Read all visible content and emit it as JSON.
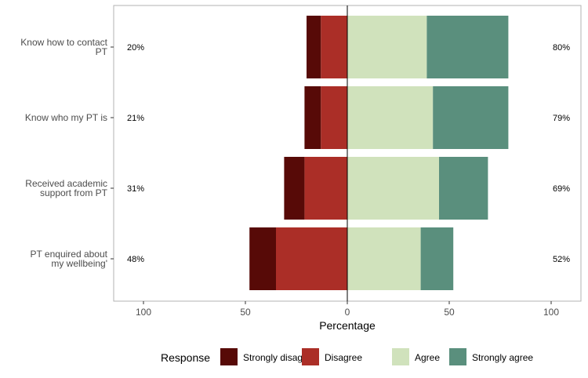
{
  "chart_data": {
    "type": "bar",
    "orientation": "horizontal",
    "layout": "diverging-stacked",
    "xlabel": "Percentage",
    "xlim": [
      -115,
      115
    ],
    "x_ticks": [
      -100,
      -50,
      0,
      50,
      100
    ],
    "x_tick_labels": [
      "100",
      "50",
      "0",
      "50",
      "100"
    ],
    "grid": false,
    "legend": {
      "title": "Response",
      "position": "bottom"
    },
    "categories": [
      "Know how to contact PT",
      "Know who my PT is",
      "Received academic support from PT",
      "PT enquired about my wellbeing'"
    ],
    "category_label_lines": [
      [
        "Know how to contact",
        "PT"
      ],
      [
        "Know who my PT is"
      ],
      [
        "Received academic",
        "support from PT"
      ],
      [
        "PT enquired about",
        "my wellbeing'"
      ]
    ],
    "series": [
      {
        "name": "Strongly disagree",
        "color": "#570a07",
        "side": "negative",
        "values": [
          7,
          8,
          10,
          13
        ]
      },
      {
        "name": "Disagree",
        "color": "#ab2e27",
        "side": "negative",
        "values": [
          13,
          13,
          21,
          35
        ]
      },
      {
        "name": "Agree",
        "color": "#d0e2bc",
        "side": "positive",
        "values": [
          39,
          42,
          45,
          36
        ]
      },
      {
        "name": "Strongly agree",
        "color": "#5a8f7d",
        "side": "positive",
        "values": [
          40,
          37,
          24,
          16
        ]
      }
    ],
    "negative_totals": [
      "20%",
      "21%",
      "31%",
      "48%"
    ],
    "positive_totals": [
      "80%",
      "79%",
      "69%",
      "52%"
    ]
  }
}
